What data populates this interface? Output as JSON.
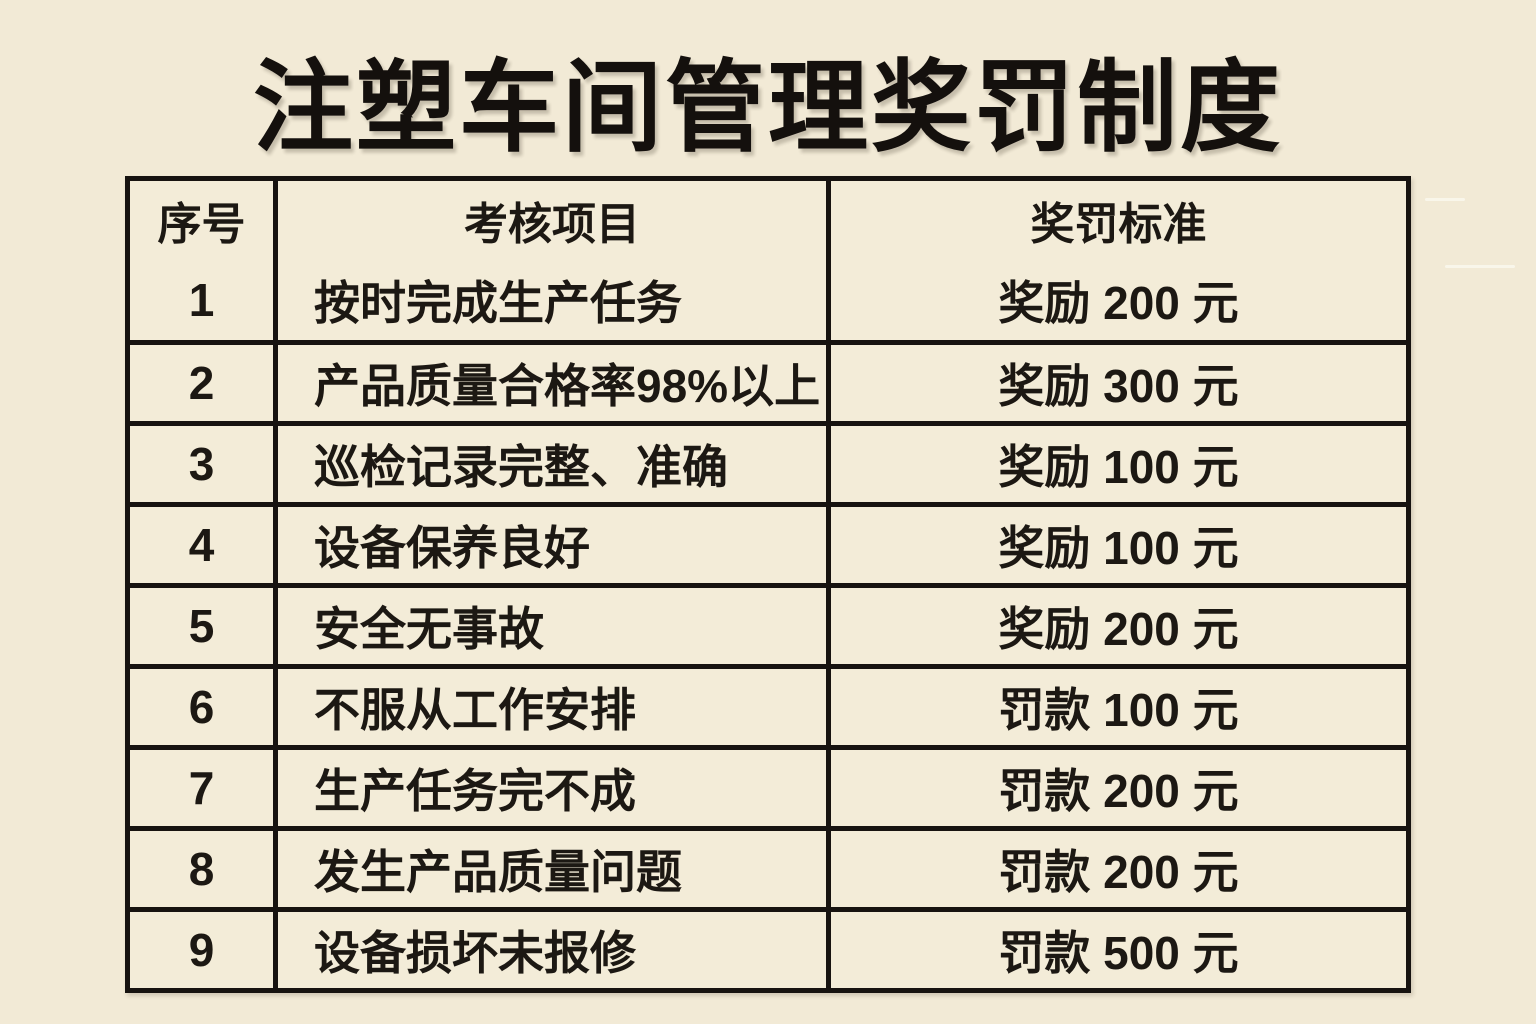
{
  "page": {
    "title": "注塑车间管理奖罚制度"
  },
  "table": {
    "headers": [
      "序号",
      "考核项目",
      "奖罚标准"
    ],
    "rows": [
      {
        "no": "1",
        "item": "按时完成生产任务",
        "standard": "奖励 200 元"
      },
      {
        "no": "2",
        "item": "产品质量合格率98%以上",
        "standard": "奖励 300 元"
      },
      {
        "no": "3",
        "item": "巡检记录完整、准确",
        "standard": "奖励 100 元"
      },
      {
        "no": "4",
        "item": "设备保养良好",
        "standard": "奖励 100 元"
      },
      {
        "no": "5",
        "item": "安全无事故",
        "standard": "奖励 200 元"
      },
      {
        "no": "6",
        "item": "不服从工作安排",
        "standard": "罚款 100 元"
      },
      {
        "no": "7",
        "item": "生产任务完不成",
        "standard": "罚款 200 元"
      },
      {
        "no": "8",
        "item": "发生产品质量问题",
        "standard": "罚款 200 元"
      },
      {
        "no": "9",
        "item": "设备损坏未报修",
        "standard": "罚款 500 元"
      }
    ]
  },
  "colors": {
    "background": "#f2ead6",
    "cell_background": "#f3ecd8",
    "border": "#171310",
    "text": "#1c1813"
  }
}
